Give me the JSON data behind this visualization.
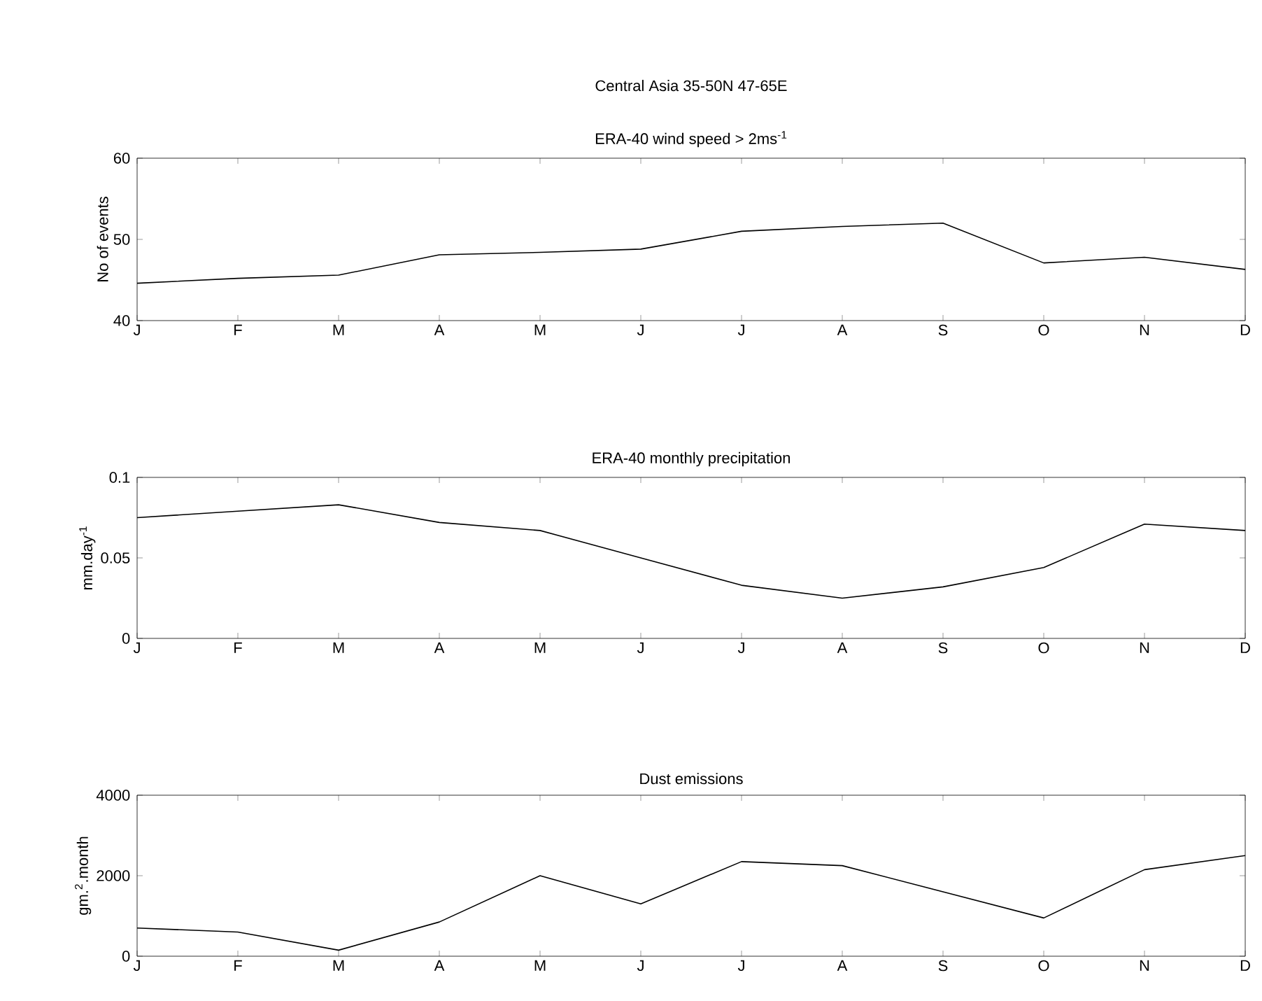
{
  "chart_data": [
    {
      "type": "line",
      "title": "ERA-40 wind speed > 2ms$^{-1}$",
      "ylabel": "No of events",
      "annotations": [
        "Central Asia 35-50N 47-65E"
      ],
      "categories": [
        "J",
        "F",
        "M",
        "A",
        "M",
        "J",
        "J",
        "A",
        "S",
        "O",
        "N",
        "D"
      ],
      "color": "#000000",
      "values": [
        44.6,
        45.2,
        45.6,
        48.1,
        48.4,
        48.8,
        51.0,
        51.6,
        52.0,
        47.1,
        47.8,
        46.3
      ],
      "ylim": [
        40,
        60
      ],
      "yticks": [
        40,
        50,
        60
      ]
    },
    {
      "type": "line",
      "title": "ERA-40 monthly precipitation",
      "ylabel": "mm.day$^{-1}$",
      "categories": [
        "J",
        "F",
        "M",
        "A",
        "M",
        "J",
        "J",
        "A",
        "S",
        "O",
        "N",
        "D"
      ],
      "color": "#000000",
      "values": [
        0.075,
        0.079,
        0.083,
        0.072,
        0.067,
        0.05,
        0.033,
        0.025,
        0.032,
        0.044,
        0.071,
        0.067
      ],
      "ylim": [
        0,
        0.1
      ],
      "yticks": [
        0,
        0.05,
        0.1
      ]
    },
    {
      "type": "line",
      "title": "Dust emissions",
      "ylabel": "gm.$^{2}$.month",
      "categories": [
        "J",
        "F",
        "M",
        "A",
        "M",
        "J",
        "J",
        "A",
        "S",
        "O",
        "N",
        "D"
      ],
      "color": "#000000",
      "values": [
        700,
        600,
        150,
        850,
        2000,
        1300,
        2350,
        2250,
        1600,
        950,
        2150,
        2500
      ],
      "ylim": [
        0,
        4000
      ],
      "yticks": [
        0,
        2000,
        4000
      ]
    }
  ]
}
